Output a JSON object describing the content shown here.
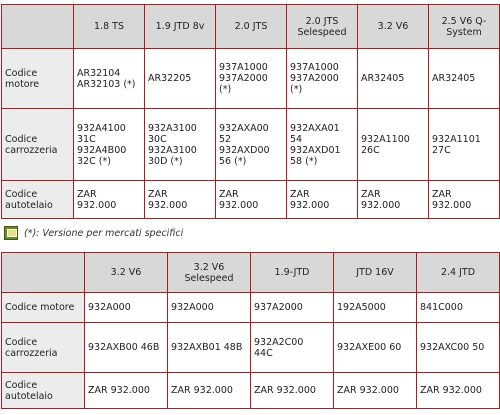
{
  "table1": {
    "columns": [
      "1.8 TS",
      "1.9 JTD 8v",
      "2.0 JTS",
      "2.0 JTS\nSelespeed",
      "3.2 V6",
      "2.5 V6 Q-\nSystem"
    ],
    "rows": [
      {
        "label": "Codice\nmotore",
        "cells": [
          "AR32104\nAR32103 (*)",
          "AR32205",
          "937A1000\n937A2000\n(*)",
          "937A1000\n937A2000\n(*)",
          "AR32405",
          "AR32405"
        ]
      },
      {
        "label": "Codice\ncarrozzeria",
        "cells": [
          "932A4100\n31C\n932A4B00\n32C (*)",
          "932A3100\n30C\n932A3100\n30D (*)",
          "932AXA00\n52\n932AXD00\n56 (*)",
          "932AXA01\n54\n932AXD01\n58 (*)",
          "932A1100\n26C",
          "932A1101\n27C"
        ]
      },
      {
        "label": "Codice\nautotelaio",
        "cells": [
          "ZAR\n932.000",
          "ZAR\n932.000",
          "ZAR\n932.000",
          "ZAR\n932.000",
          "ZAR\n932.000",
          "ZAR\n932.000"
        ]
      }
    ]
  },
  "note": {
    "icon": "note-icon",
    "text": "(*): Versione per mercati specifici"
  },
  "table2": {
    "columns": [
      "3.2 V6",
      "3.2 V6\nSelespeed",
      "1.9-JTD",
      "JTD 16V",
      "2.4 JTD"
    ],
    "rows": [
      {
        "label": "Codice motore",
        "cells": [
          "932A000",
          "932A000",
          "937A2000",
          "192A5000",
          "841C000"
        ]
      },
      {
        "label": "Codice\ncarrozzeria",
        "cells": [
          "932AXB00 46B",
          "932AXB01 48B",
          "932A2C00\n44C",
          "932AXE00 60",
          "932AXC00 50"
        ]
      },
      {
        "label": "Codice\nautotelaio",
        "cells": [
          "ZAR 932.000",
          "ZAR 932.000",
          "ZAR 932.000",
          "ZAR 932.000",
          "ZAR 932.000"
        ]
      }
    ]
  }
}
